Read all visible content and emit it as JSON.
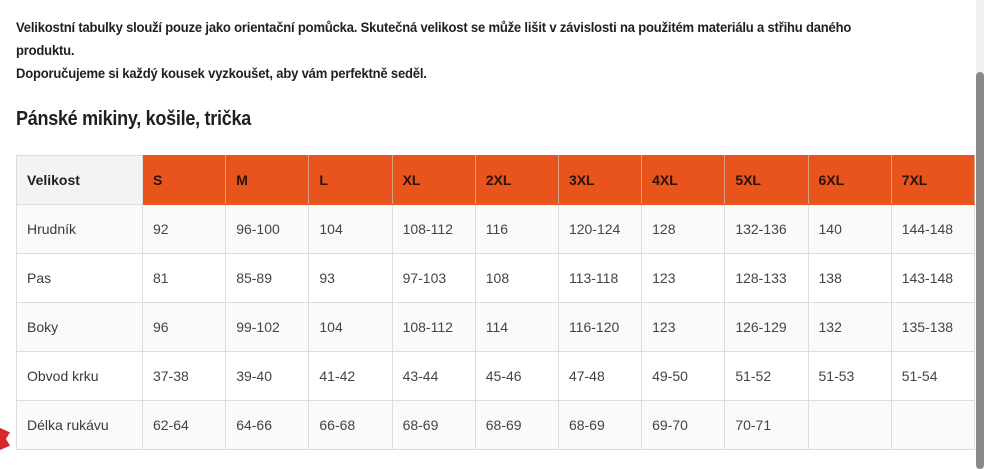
{
  "intro": {
    "line1": "Velikostní tabulky slouží pouze jako orientační pomůcka. Skutečná velikost se může lišit v závislosti na použitém materiálu a střihu daného produktu.",
    "line2": "Doporučujeme si každý kousek vyzkoušet, aby vám perfektně seděl."
  },
  "section_title": "Pánské mikiny, košile, trička",
  "table": {
    "corner_label": "Velikost",
    "sizes": [
      "S",
      "M",
      "L",
      "XL",
      "2XL",
      "3XL",
      "4XL",
      "5XL",
      "6XL",
      "7XL"
    ],
    "rows": [
      {
        "label": "Hrudník",
        "values": [
          "92",
          "96-100",
          "104",
          "108-112",
          "116",
          "120-124",
          "128",
          "132-136",
          "140",
          "144-148"
        ]
      },
      {
        "label": "Pas",
        "values": [
          "81",
          "85-89",
          "93",
          "97-103",
          "108",
          "113-118",
          "123",
          "128-133",
          "138",
          "143-148"
        ]
      },
      {
        "label": "Boky",
        "values": [
          "96",
          "99-102",
          "104",
          "108-112",
          "114",
          "116-120",
          "123",
          "126-129",
          "132",
          "135-138"
        ]
      },
      {
        "label": "Obvod krku",
        "values": [
          "37-38",
          "39-40",
          "41-42",
          "43-44",
          "45-46",
          "47-48",
          "49-50",
          "51-52",
          "51-53",
          "51-54"
        ]
      },
      {
        "label": "Délka rukávu",
        "values": [
          "62-64",
          "64-66",
          "66-68",
          "68-69",
          "68-69",
          "68-69",
          "69-70",
          "70-71",
          "",
          ""
        ]
      }
    ]
  },
  "colors": {
    "header_accent": "#e8541c",
    "corner_background": "#f3f3f3"
  }
}
